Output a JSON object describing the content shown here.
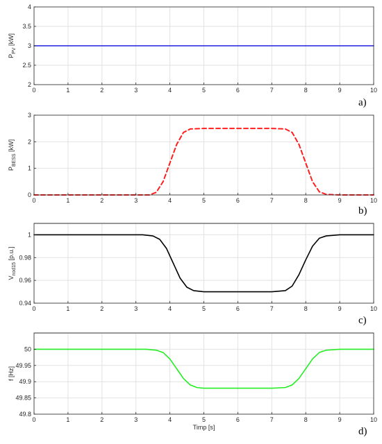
{
  "chart_data": [
    {
      "type": "line",
      "panel_tag": "a)",
      "ylabel_main": "P",
      "ylabel_sub": "PV",
      "ylabel_unit": " [kW]",
      "xlabel": "",
      "xlim": [
        0,
        10
      ],
      "ylim": [
        2,
        4
      ],
      "xticks": [
        "0",
        "1",
        "2",
        "3",
        "4",
        "5",
        "6",
        "7",
        "8",
        "9",
        "10"
      ],
      "yticks": [
        "2",
        "2.5",
        "3",
        "3.5",
        "4"
      ],
      "grid": true,
      "series": [
        {
          "color": "#1f1fe0",
          "style": "solid",
          "x": [
            0,
            1,
            2,
            3,
            4,
            5,
            6,
            7,
            8,
            9,
            10
          ],
          "y": [
            3,
            3,
            3,
            3,
            3,
            3,
            3,
            3,
            3,
            3,
            3
          ]
        }
      ]
    },
    {
      "type": "line",
      "panel_tag": "b)",
      "ylabel_main": "P",
      "ylabel_sub": "BESS",
      "ylabel_unit": " [kW]",
      "xlabel": "",
      "xlim": [
        0,
        10
      ],
      "ylim": [
        0,
        3
      ],
      "xticks": [
        "0",
        "1",
        "2",
        "3",
        "4",
        "5",
        "6",
        "7",
        "8",
        "9",
        "10"
      ],
      "yticks": [
        "0",
        "1",
        "2",
        "3"
      ],
      "grid": true,
      "series": [
        {
          "color": "#ff1f1f",
          "style": "dashed",
          "x": [
            0,
            3.4,
            3.6,
            3.8,
            4.0,
            4.2,
            4.4,
            4.6,
            5,
            6,
            7,
            7.4,
            7.6,
            7.8,
            8.0,
            8.2,
            8.4,
            8.6,
            9,
            10
          ],
          "y": [
            0,
            0,
            0.1,
            0.5,
            1.2,
            1.9,
            2.35,
            2.48,
            2.5,
            2.5,
            2.5,
            2.48,
            2.35,
            1.9,
            1.2,
            0.5,
            0.12,
            0.02,
            0,
            0
          ]
        }
      ]
    },
    {
      "type": "line",
      "panel_tag": "c)",
      "ylabel_main": "V",
      "ylabel_sub": "nod15",
      "ylabel_unit": " [p.u.]",
      "xlabel": "",
      "xlim": [
        0,
        10
      ],
      "ylim": [
        0.94,
        1.01
      ],
      "xticks": [
        "0",
        "1",
        "2",
        "3",
        "4",
        "5",
        "6",
        "7",
        "8",
        "9",
        "10"
      ],
      "yticks": [
        "0.94",
        "0.96",
        "0.98",
        "1"
      ],
      "grid": true,
      "series": [
        {
          "color": "#000000",
          "style": "solid",
          "x": [
            0,
            3.2,
            3.5,
            3.7,
            3.9,
            4.1,
            4.3,
            4.5,
            4.7,
            5,
            6,
            7,
            7.4,
            7.6,
            7.8,
            8.0,
            8.2,
            8.4,
            8.6,
            9,
            10
          ],
          "y": [
            1,
            1,
            0.999,
            0.996,
            0.988,
            0.975,
            0.962,
            0.954,
            0.951,
            0.95,
            0.95,
            0.95,
            0.951,
            0.955,
            0.965,
            0.978,
            0.99,
            0.997,
            0.999,
            1,
            1
          ]
        }
      ]
    },
    {
      "type": "line",
      "panel_tag": "d)",
      "ylabel_main": "f [Hz]",
      "ylabel_sub": "",
      "ylabel_unit": "",
      "xlabel": "Timp [s]",
      "xlim": [
        0,
        10
      ],
      "ylim": [
        49.8,
        50.05
      ],
      "xticks": [
        "0",
        "1",
        "2",
        "3",
        "4",
        "5",
        "6",
        "7",
        "8",
        "9",
        "10"
      ],
      "yticks": [
        "49.8",
        "49.85",
        "49.9",
        "49.95",
        "50"
      ],
      "grid": true,
      "series": [
        {
          "color": "#22ee22",
          "style": "solid",
          "x": [
            0,
            3.3,
            3.6,
            3.8,
            4.0,
            4.2,
            4.4,
            4.6,
            4.8,
            5,
            6,
            7,
            7.4,
            7.6,
            7.8,
            8.0,
            8.2,
            8.4,
            8.6,
            9,
            10
          ],
          "y": [
            50,
            50,
            49.997,
            49.99,
            49.97,
            49.94,
            49.91,
            49.89,
            49.882,
            49.88,
            49.88,
            49.88,
            49.882,
            49.89,
            49.91,
            49.94,
            49.97,
            49.99,
            49.997,
            50,
            50
          ]
        }
      ]
    }
  ]
}
